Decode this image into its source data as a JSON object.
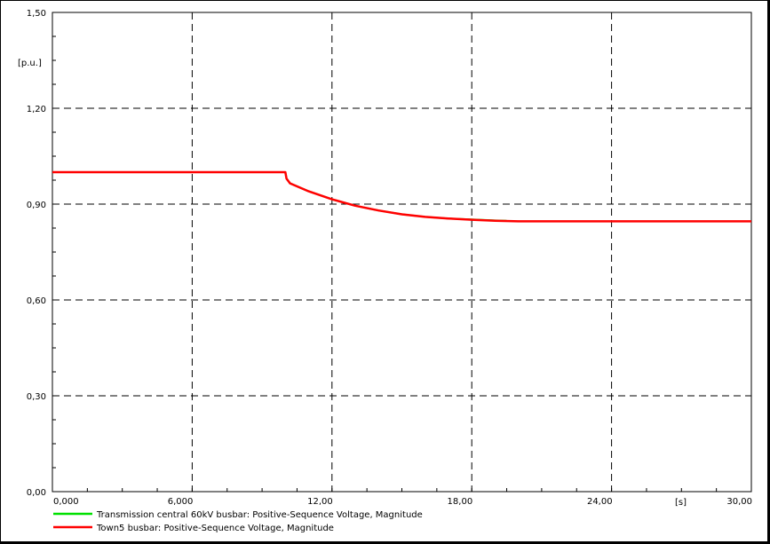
{
  "chart_data": {
    "type": "line",
    "xlabel": "[s]",
    "ylabel": "[p.u.]",
    "xlim": [
      0,
      30
    ],
    "ylim": [
      0,
      1.5
    ],
    "x_ticks": [
      "0,000",
      "6,000",
      "12,00",
      "18,00",
      "24,00",
      "30,00"
    ],
    "y_ticks": [
      "0,00",
      "0,30",
      "0,60",
      "0,90",
      "1,20",
      "1,50"
    ],
    "grid": true,
    "legend_position": "bottom",
    "series": [
      {
        "name": "Transmission central 60kV  busbar: Positive-Sequence Voltage, Magnitude",
        "color": "#00e000",
        "x": [
          0,
          10,
          10.05,
          10.2,
          11,
          12,
          13,
          14,
          15,
          16,
          17,
          18,
          19,
          19.5
        ],
        "y": [
          1.0,
          1.0,
          0.98,
          0.965,
          0.94,
          0.915,
          0.895,
          0.88,
          0.868,
          0.86,
          0.855,
          0.852,
          0.849,
          0.848
        ]
      },
      {
        "name": "Town5 busbar: Positive-Sequence Voltage, Magnitude",
        "color": "#ff0000",
        "x": [
          0,
          10,
          10.05,
          10.2,
          11,
          12,
          13,
          14,
          15,
          16,
          17,
          18,
          19,
          20,
          22,
          24,
          26,
          28,
          30
        ],
        "y": [
          1.0,
          1.0,
          0.98,
          0.965,
          0.94,
          0.915,
          0.895,
          0.88,
          0.868,
          0.86,
          0.855,
          0.851,
          0.848,
          0.846,
          0.846,
          0.846,
          0.846,
          0.846,
          0.846
        ]
      }
    ]
  }
}
